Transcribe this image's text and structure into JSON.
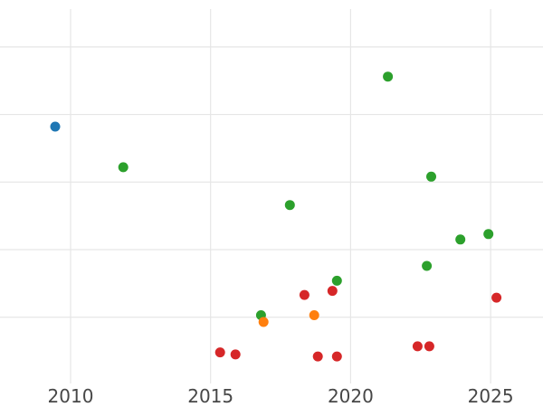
{
  "figure": {
    "background": "#ffffff",
    "grid_color": "#e6e6e6",
    "tick_label_color": "#474747",
    "tick_label_font_size": 20
  },
  "chart_data": {
    "type": "scatter",
    "title": "",
    "xlabel": "",
    "ylabel": "",
    "grid": true,
    "legend": null,
    "marker": {
      "shape": "circle",
      "radius_px": 5.5
    },
    "x_axis": {
      "tick_labels": [
        "2010",
        "2015",
        "2020",
        "2025"
      ],
      "tick_values": [
        2010,
        2015,
        2020,
        2025
      ],
      "range": [
        2007.48,
        2026.87
      ]
    },
    "y_axis": {
      "tick_labels": [],
      "tick_values": [
        1,
        2,
        3,
        4,
        5
      ],
      "range": [
        0.02,
        5.56
      ],
      "units": "gridline-units (bottom visible gridline = 1; labels not visible in image)"
    },
    "series": [
      {
        "name": "blue",
        "color": "#1f77b4",
        "points": [
          {
            "x": 2009.45,
            "y": 3.82
          }
        ]
      },
      {
        "name": "green",
        "color": "#2ca02c",
        "points": [
          {
            "x": 2011.88,
            "y": 3.22
          },
          {
            "x": 2016.8,
            "y": 1.03
          },
          {
            "x": 2017.83,
            "y": 2.66
          },
          {
            "x": 2019.51,
            "y": 1.54
          },
          {
            "x": 2021.33,
            "y": 4.56
          },
          {
            "x": 2022.72,
            "y": 1.76
          },
          {
            "x": 2022.88,
            "y": 3.08
          },
          {
            "x": 2023.92,
            "y": 2.15
          },
          {
            "x": 2024.92,
            "y": 2.23
          }
        ]
      },
      {
        "name": "orange",
        "color": "#ff7f0e",
        "points": [
          {
            "x": 2016.89,
            "y": 0.93
          },
          {
            "x": 2018.7,
            "y": 1.03
          }
        ]
      },
      {
        "name": "red",
        "color": "#d62728",
        "points": [
          {
            "x": 2015.34,
            "y": 0.48
          },
          {
            "x": 2015.89,
            "y": 0.45
          },
          {
            "x": 2018.35,
            "y": 1.33
          },
          {
            "x": 2018.83,
            "y": 0.42
          },
          {
            "x": 2019.35,
            "y": 1.39
          },
          {
            "x": 2019.51,
            "y": 0.42
          },
          {
            "x": 2022.39,
            "y": 0.57
          },
          {
            "x": 2022.81,
            "y": 0.57
          },
          {
            "x": 2025.21,
            "y": 1.29
          }
        ]
      }
    ]
  }
}
